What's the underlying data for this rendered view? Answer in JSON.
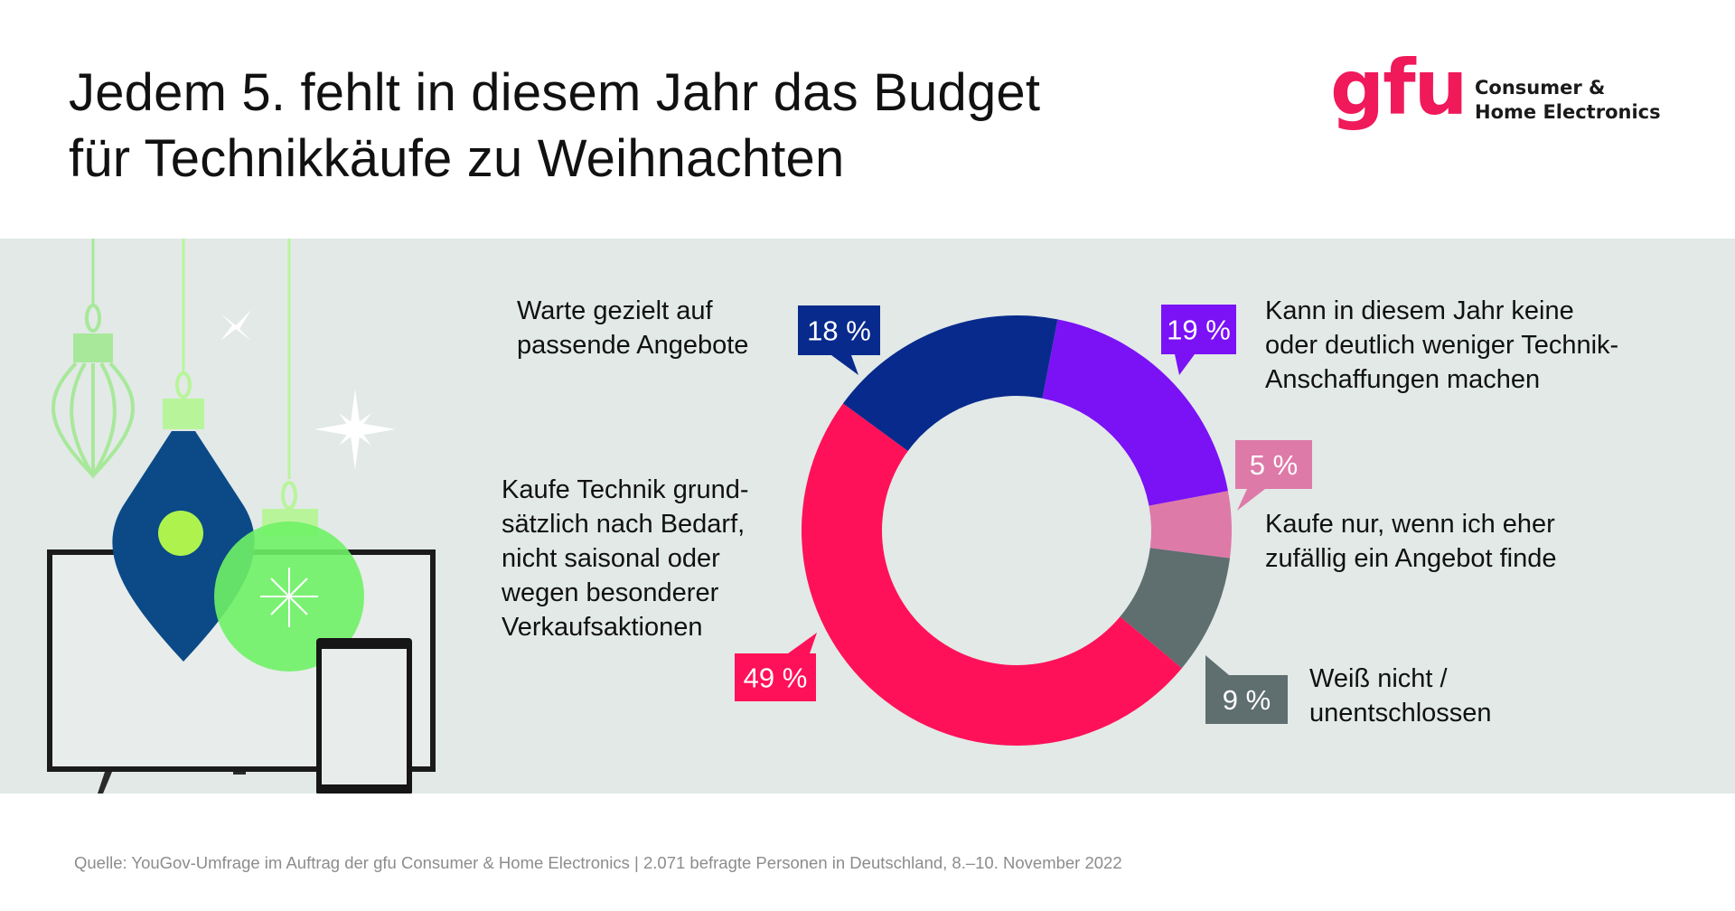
{
  "header": {
    "title_lines": [
      "Jedem 5. fehlt in diesem Jahr das Budget",
      "für Technikkäufe zu Weihnachten"
    ],
    "logo": {
      "mark": "gfu",
      "text_lines": [
        "Consumer &",
        "Home Electronics"
      ],
      "color": "#f0195a"
    }
  },
  "illustration": {
    "icons": [
      "ornament-outline-icon",
      "ornament-navy-icon",
      "ornament-green-icon",
      "sparkle-icon",
      "star-icon",
      "tv-icon",
      "tablet-icon"
    ]
  },
  "chart_data": {
    "type": "pie",
    "variant": "donut",
    "title": "Jedem 5. fehlt in diesem Jahr das Budget für Technikkäufe zu Weihnachten",
    "unit": "%",
    "start": "top, clockwise",
    "slices": [
      {
        "key": "budget",
        "value": 19,
        "label": "19 %",
        "color": "#7a12f5",
        "text_lines": [
          "Kann in diesem Jahr keine",
          "oder deutlich weniger Technik-",
          "Anschaffungen machen"
        ]
      },
      {
        "key": "zufall",
        "value": 5,
        "label": "5 %",
        "color": "#de7aa8",
        "text_lines": [
          "Kaufe nur, wenn ich eher",
          "zufällig ein Angebot finde"
        ]
      },
      {
        "key": "unentschlossen",
        "value": 9,
        "label": "9 %",
        "color": "#5f6e6f",
        "text_lines": [
          "Weiß nicht /",
          "unentschlossen"
        ]
      },
      {
        "key": "bedarf",
        "value": 49,
        "label": "49 %",
        "color": "#ff1159",
        "text_lines": [
          "Kaufe Technik grund-",
          "sätzlich nach Bedarf,",
          "nicht saisonal oder",
          "wegen besonderer",
          "Verkaufsaktionen"
        ]
      },
      {
        "key": "angebote",
        "value": 18,
        "label": "18 %",
        "color": "#082a8c",
        "text_lines": [
          "Warte gezielt auf",
          "passende Angebote"
        ]
      }
    ]
  },
  "footer": {
    "source": "Quelle: YouGov-Umfrage im Auftrag der gfu Consumer & Home Electronics | 2.071 befragte Personen in Deutschland, 8.–10. November 2022"
  }
}
